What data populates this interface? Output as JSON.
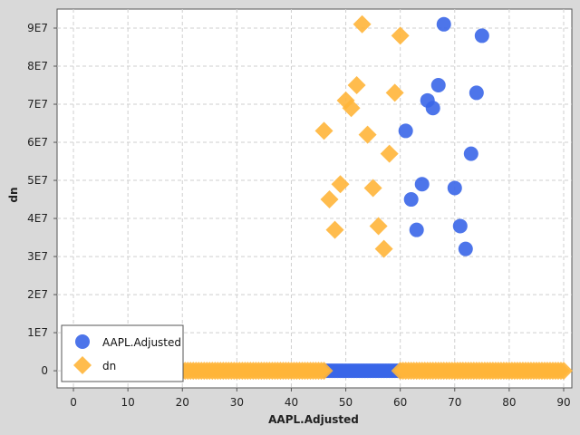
{
  "chart_data": {
    "type": "scatter",
    "xlabel": "AAPL.Adjusted",
    "ylabel": "dn",
    "xlim": [
      -3,
      91.5
    ],
    "ylim": [
      -4500000.0,
      95000000.0
    ],
    "x_ticks": [
      0,
      10,
      20,
      30,
      40,
      50,
      60,
      70,
      80,
      90
    ],
    "x_tick_labels": [
      "0",
      "10",
      "20",
      "30",
      "40",
      "50",
      "60",
      "70",
      "80",
      "90"
    ],
    "y_ticks": [
      0,
      10000000.0,
      20000000.0,
      30000000.0,
      40000000.0,
      50000000.0,
      60000000.0,
      70000000.0,
      80000000.0,
      90000000.0
    ],
    "y_tick_labels": [
      "0",
      "1E7",
      "2E7",
      "3E7",
      "4E7",
      "5E7",
      "6E7",
      "7E7",
      "8E7",
      "9E7"
    ],
    "grid": true,
    "legend_position": "bottom-left",
    "series": [
      {
        "name": "AAPL.Adjusted",
        "marker": "circle",
        "color": "#3a66e8",
        "x": [
          61,
          62,
          63,
          64,
          65,
          66,
          67,
          68,
          70,
          71,
          72,
          73,
          74,
          75
        ],
        "y": [
          63000000.0,
          45000000.0,
          37000000.0,
          49000000.0,
          71000000.0,
          69000000.0,
          75000000.0,
          91000000.0,
          48000000.0,
          38000000.0,
          32000000.0,
          57000000.0,
          73000000.0,
          88000000.0
        ],
        "baseline_range": [
          46,
          60
        ]
      },
      {
        "name": "dn",
        "marker": "diamond",
        "color": "#ffb53a",
        "x": [
          46,
          47,
          48,
          49,
          50,
          51,
          52,
          53,
          54,
          55,
          56,
          57,
          58,
          59,
          60
        ],
        "y": [
          63000000.0,
          45000000.0,
          37000000.0,
          49000000.0,
          71000000.0,
          69000000.0,
          75000000.0,
          91000000.0,
          62000000.0,
          48000000.0,
          38000000.0,
          32000000.0,
          57000000.0,
          73000000.0,
          88000000.0
        ],
        "baseline_ranges": [
          [
            20,
            46
          ],
          [
            60,
            90
          ]
        ]
      }
    ]
  }
}
